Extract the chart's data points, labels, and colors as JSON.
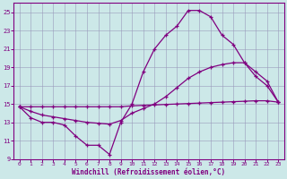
{
  "background_color": "#cce8e8",
  "line_color": "#800080",
  "grid_color": "#9999bb",
  "xlabel": "Windchill (Refroidissement éolien,°C)",
  "xlim": [
    -0.5,
    23.5
  ],
  "ylim": [
    9,
    26
  ],
  "xticks": [
    0,
    1,
    2,
    3,
    4,
    5,
    6,
    7,
    8,
    9,
    10,
    11,
    12,
    13,
    14,
    15,
    16,
    17,
    18,
    19,
    20,
    21,
    22,
    23
  ],
  "yticks": [
    9,
    11,
    13,
    15,
    17,
    19,
    21,
    23,
    25
  ],
  "series": [
    {
      "x": [
        0,
        1,
        2,
        3,
        4,
        5,
        6,
        7,
        8,
        9,
        10,
        11,
        12,
        13,
        14,
        15,
        16,
        17,
        18,
        19,
        20,
        21,
        22,
        23
      ],
      "y": [
        14.7,
        14.7,
        14.7,
        14.7,
        14.7,
        14.7,
        14.7,
        14.7,
        14.7,
        14.7,
        14.8,
        14.85,
        14.9,
        14.95,
        15.0,
        15.05,
        15.1,
        15.15,
        15.2,
        15.25,
        15.3,
        15.35,
        15.35,
        15.2
      ]
    },
    {
      "x": [
        0,
        1,
        2,
        3,
        4,
        5,
        6,
        7,
        8,
        9,
        10,
        11,
        12,
        13,
        14,
        15,
        16,
        17,
        18,
        19,
        20,
        21,
        22,
        23
      ],
      "y": [
        14.7,
        14.2,
        13.8,
        13.6,
        13.4,
        13.2,
        13.0,
        12.9,
        12.8,
        13.2,
        14.0,
        14.5,
        15.0,
        15.8,
        16.8,
        17.8,
        18.5,
        19.0,
        19.3,
        19.5,
        19.5,
        18.5,
        17.5,
        15.2
      ]
    },
    {
      "x": [
        0,
        1,
        2,
        3,
        4,
        5,
        6,
        7,
        8,
        9,
        10,
        11,
        12,
        13,
        14,
        15,
        16,
        17,
        18,
        19,
        20,
        21,
        22,
        23
      ],
      "y": [
        14.7,
        13.5,
        13.0,
        13.0,
        12.7,
        11.5,
        10.5,
        10.5,
        9.5,
        13.0,
        15.0,
        18.5,
        21.0,
        22.5,
        23.5,
        25.2,
        25.2,
        24.5,
        22.5,
        21.5,
        19.5,
        18.0,
        17.0,
        15.2
      ]
    }
  ]
}
